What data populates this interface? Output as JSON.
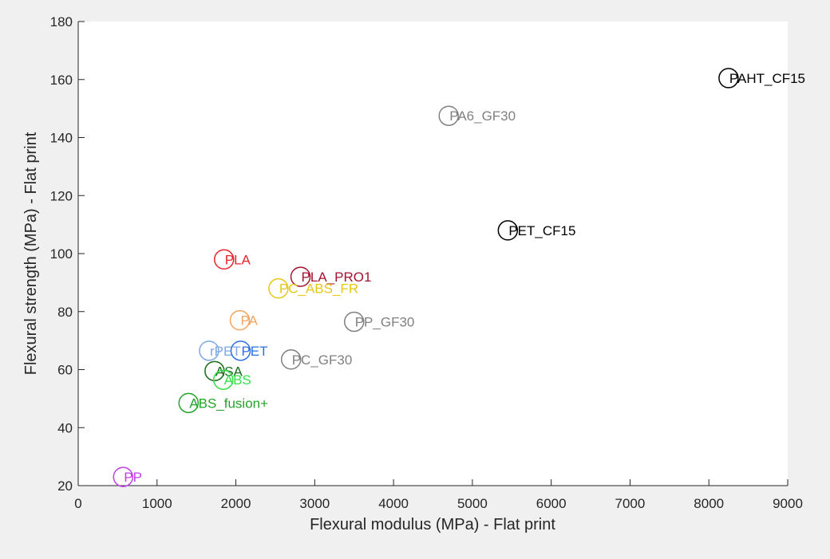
{
  "chart_data": {
    "type": "scatter",
    "title": "",
    "xlabel": "Flexural modulus (MPa) - Flat print",
    "ylabel": "Flexural strength (MPa) - Flat print",
    "xlim": [
      0,
      9000
    ],
    "ylim": [
      20,
      180
    ],
    "xticks": [
      0,
      1000,
      2000,
      3000,
      4000,
      5000,
      6000,
      7000,
      8000,
      9000
    ],
    "yticks": [
      20,
      40,
      60,
      80,
      100,
      120,
      140,
      160,
      180
    ],
    "grid": false,
    "legend": "none",
    "marker": "open-circle",
    "background": "#f0f0f0",
    "plot_background": "#ffffff",
    "points": [
      {
        "label": "PAHT_CF15",
        "x": 8250,
        "y": 160.5,
        "color": "#000000"
      },
      {
        "label": "PA6_GF30",
        "x": 4700,
        "y": 147.5,
        "color": "#808080"
      },
      {
        "label": "PET_CF15",
        "x": 5450,
        "y": 108,
        "color": "#000000"
      },
      {
        "label": "PLA",
        "x": 1850,
        "y": 98,
        "color": "#e8262e"
      },
      {
        "label": "PLA_PRO1",
        "x": 2820,
        "y": 92,
        "color": "#a2142f"
      },
      {
        "label": "PC_ABS_FR",
        "x": 2540,
        "y": 88,
        "color": "#e6c817"
      },
      {
        "label": "PA",
        "x": 2050,
        "y": 77,
        "color": "#f5a561"
      },
      {
        "label": "PP_GF30",
        "x": 3500,
        "y": 76.5,
        "color": "#808080"
      },
      {
        "label": "rPET",
        "x": 1660,
        "y": 66.5,
        "color": "#7fa8e8"
      },
      {
        "label": "PET",
        "x": 2060,
        "y": 66.5,
        "color": "#2f6fe0"
      },
      {
        "label": "PC_GF30",
        "x": 2700,
        "y": 63.5,
        "color": "#808080"
      },
      {
        "label": "ASA",
        "x": 1730,
        "y": 59.5,
        "color": "#1a6b1a"
      },
      {
        "label": "ABS",
        "x": 1840,
        "y": 56.5,
        "color": "#33e04a"
      },
      {
        "label": "ABS_fusion+",
        "x": 1400,
        "y": 48.5,
        "color": "#22a32a"
      },
      {
        "label": "PP",
        "x": 570,
        "y": 23,
        "color": "#bf40e6"
      }
    ]
  }
}
